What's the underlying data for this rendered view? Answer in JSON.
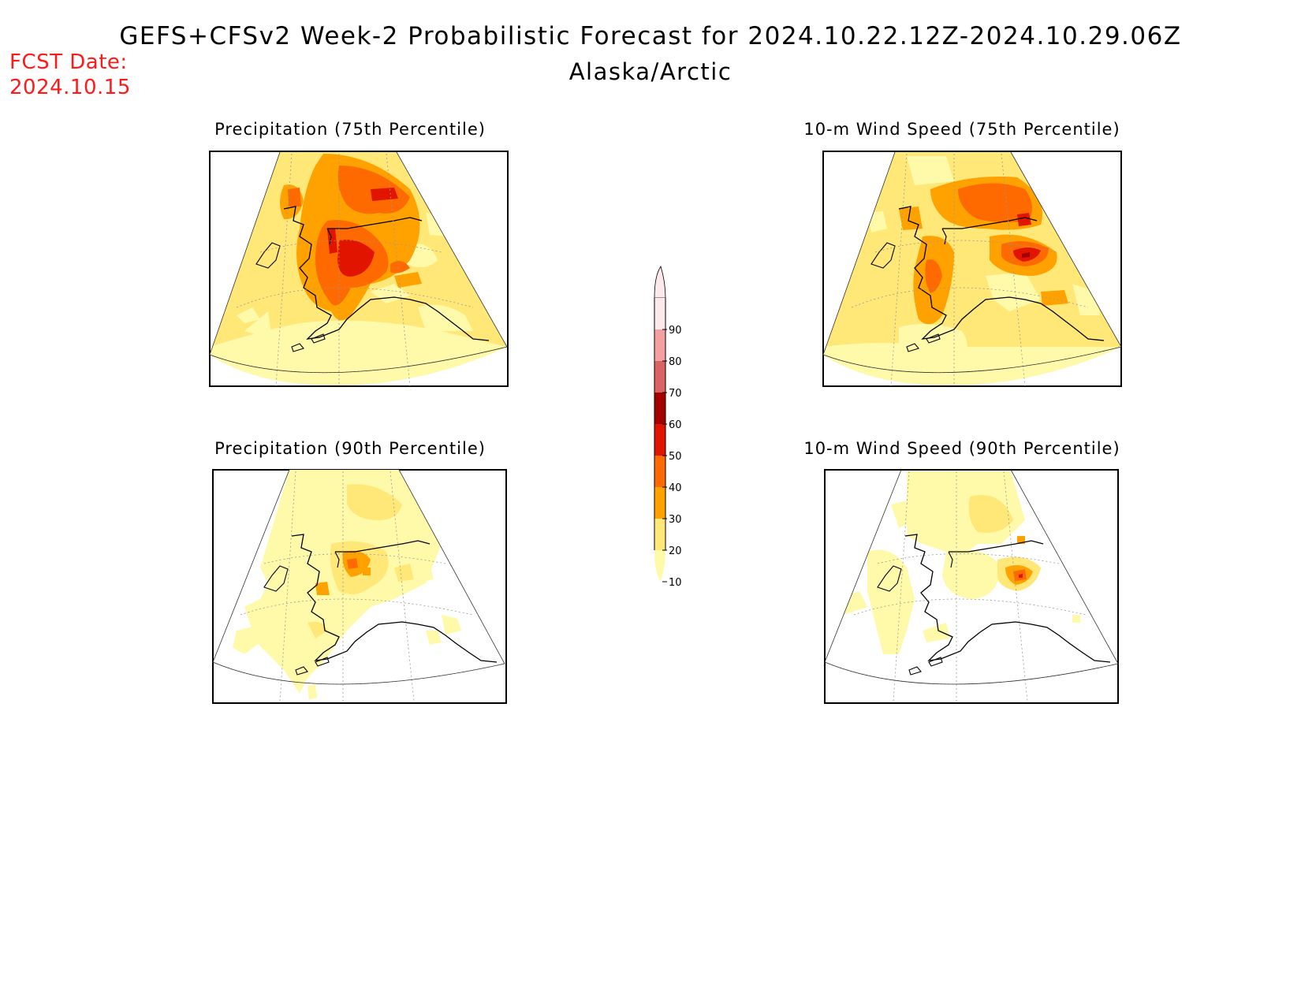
{
  "header": {
    "title": "GEFS+CFSv2 Week-2 Probabilistic Forecast for 2024.10.22.12Z-2024.10.29.06Z",
    "subtitle": "Alaska/Arctic",
    "fcst_label": "FCST Date:",
    "fcst_date": "2024.10.15"
  },
  "panels": [
    {
      "id": "precip75",
      "title": "Precipitation (75th Percentile)"
    },
    {
      "id": "wind75",
      "title": "10-m Wind Speed (75th Percentile)"
    },
    {
      "id": "precip90",
      "title": "Precipitation (90th Percentile)"
    },
    {
      "id": "wind90",
      "title": "10-m Wind Speed (90th Percentile)"
    }
  ],
  "legend": {
    "levels": [
      "10",
      "20",
      "30",
      "40",
      "50",
      "60",
      "70",
      "80",
      "90"
    ],
    "colors": [
      "#fffaaa",
      "#ffe778",
      "#ffa200",
      "#ff6a00",
      "#e11400",
      "#a50000",
      "#d96464",
      "#f4a0a0",
      "#fde8ea"
    ]
  },
  "colors": {
    "c10": "#fffaaa",
    "c20": "#ffe778",
    "c30": "#ffa200",
    "c40": "#ff6a00",
    "c50": "#e11400",
    "c60": "#a50000"
  }
}
